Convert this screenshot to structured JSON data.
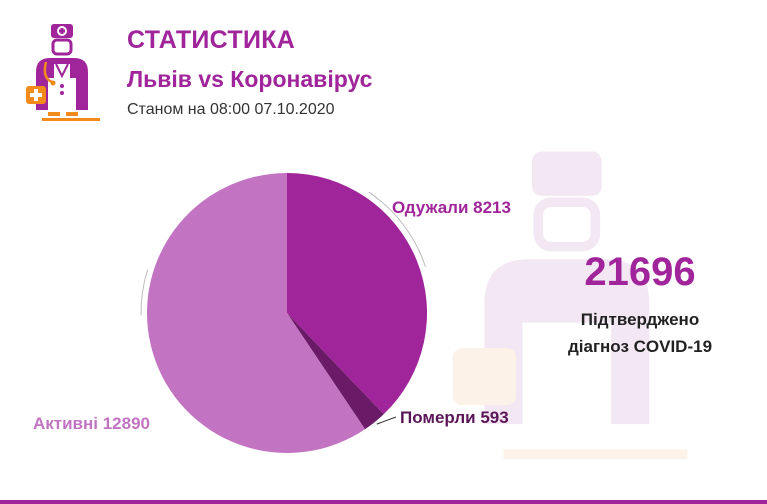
{
  "header": {
    "title": "СТАТИСТИКА",
    "subtitle": "Львів vs Коронавірус",
    "date_line": "Станом на 08:00 07.10.2020"
  },
  "summary": {
    "total": "21696",
    "caption_line1": "Підтверджено",
    "caption_line2": "діагноз COVID-19"
  },
  "colors": {
    "brand": "#a0249a",
    "recovered": "#a0249a",
    "deaths": "#6b1a67",
    "active": "#c274c2",
    "accent_orange": "#f28a1c"
  },
  "icons": [
    "doctor-logo-icon",
    "doctor-watermark-icon"
  ],
  "chart_data": {
    "type": "pie",
    "slices": [
      {
        "label": "Одужали",
        "value": 8213,
        "color": "#a0249a",
        "label_text": "Одужали 8213"
      },
      {
        "label": "Померли",
        "value": 593,
        "color": "#6b1a67",
        "label_text": "Померли 593"
      },
      {
        "label": "Активні",
        "value": 12890,
        "color": "#c274c2",
        "label_text": "Активні 12890"
      }
    ]
  }
}
